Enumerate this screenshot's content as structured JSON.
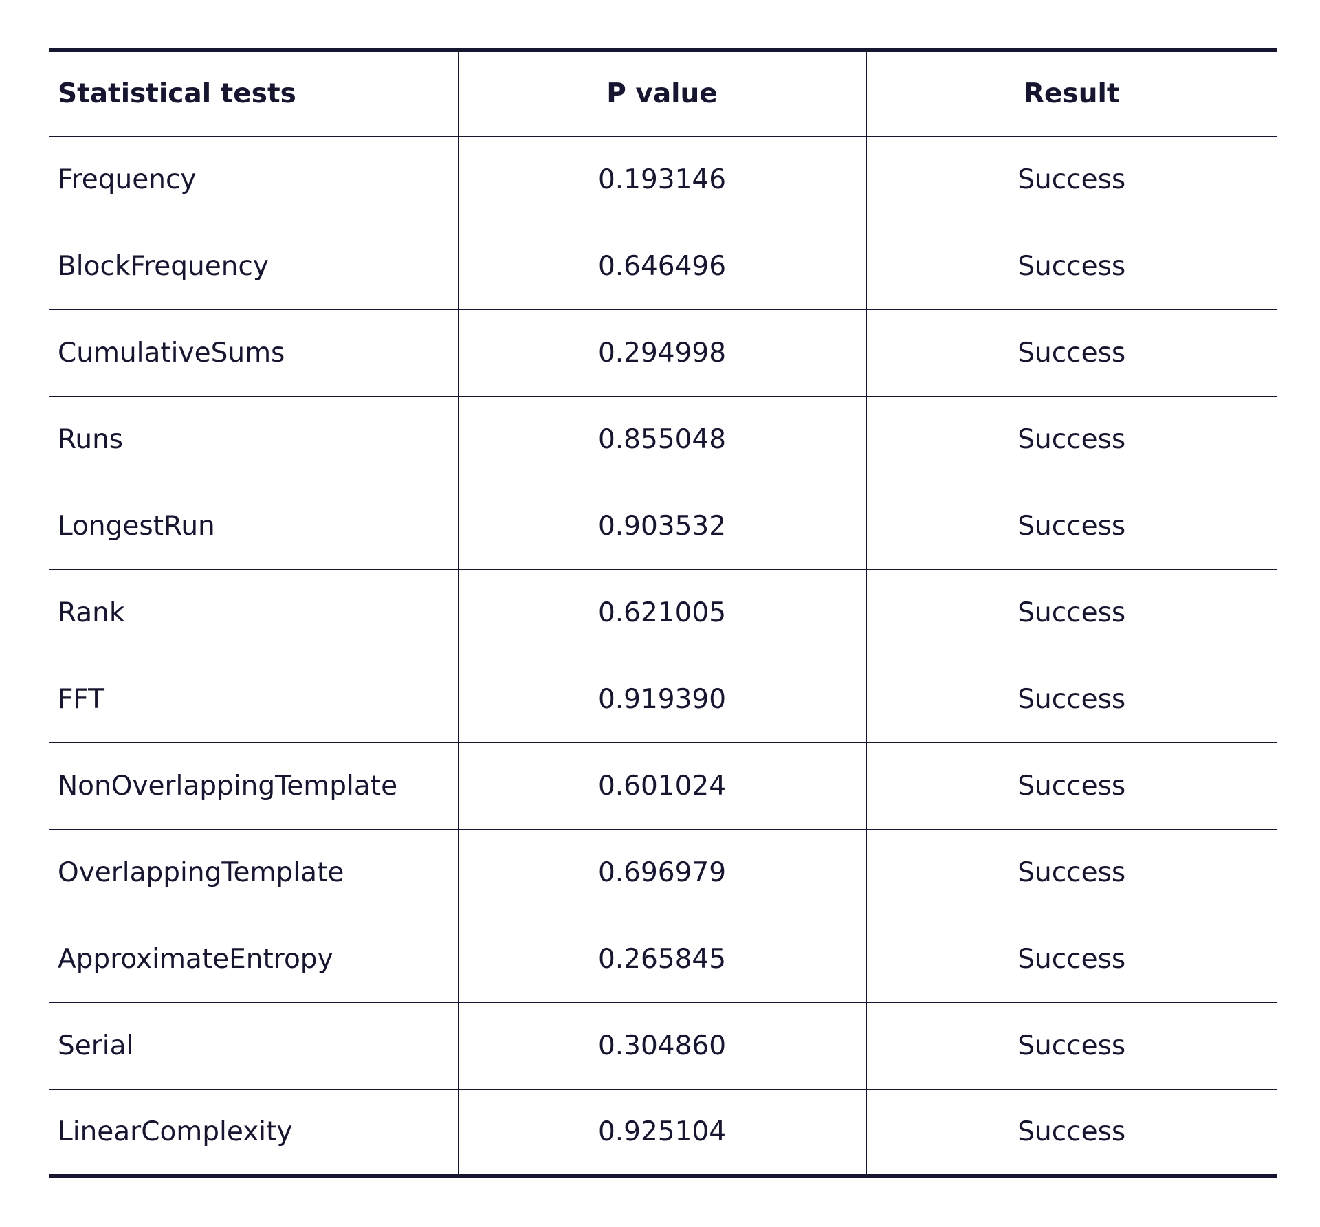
{
  "table": {
    "headers": [
      "Statistical tests",
      "P value",
      "Result"
    ],
    "rows": [
      {
        "test": "Frequency",
        "p_value": "0.193146",
        "result": "Success"
      },
      {
        "test": "BlockFrequency",
        "p_value": "0.646496",
        "result": "Success"
      },
      {
        "test": "CumulativeSums",
        "p_value": "0.294998",
        "result": "Success"
      },
      {
        "test": "Runs",
        "p_value": "0.855048",
        "result": "Success"
      },
      {
        "test": "LongestRun",
        "p_value": "0.903532",
        "result": "Success"
      },
      {
        "test": "Rank",
        "p_value": "0.621005",
        "result": "Success"
      },
      {
        "test": "FFT",
        "p_value": "0.919390",
        "result": "Success"
      },
      {
        "test": "NonOverlappingTemplate",
        "p_value": "0.601024",
        "result": "Success"
      },
      {
        "test": "OverlappingTemplate",
        "p_value": "0.696979",
        "result": "Success"
      },
      {
        "test": "ApproximateEntropy",
        "p_value": "0.265845",
        "result": "Success"
      },
      {
        "test": "Serial",
        "p_value": "0.304860",
        "result": "Success"
      },
      {
        "test": "LinearComplexity",
        "p_value": "0.925104",
        "result": "Success"
      }
    ]
  }
}
